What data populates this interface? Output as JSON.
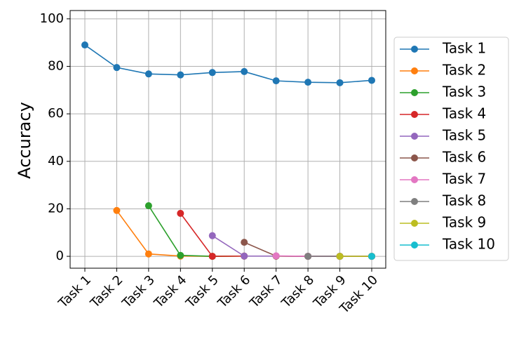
{
  "chart_data": {
    "type": "line",
    "ylabel": "Accuracy",
    "categories": [
      "Task 1",
      "Task 2",
      "Task 3",
      "Task 4",
      "Task 5",
      "Task 6",
      "Task 7",
      "Task 8",
      "Task 9",
      "Task 10"
    ],
    "series": [
      {
        "name": "Task 1",
        "color": "#1f77b4",
        "values": [
          89,
          79.5,
          76.8,
          76.4,
          77.4,
          77.8,
          73.9,
          73.3,
          73.1,
          74.1
        ]
      },
      {
        "name": "Task 2",
        "color": "#ff7f0e",
        "values": [
          null,
          19.3,
          1.0,
          0.1,
          0.0,
          0.1,
          0.1,
          0.0,
          0.0,
          0.0
        ]
      },
      {
        "name": "Task 3",
        "color": "#2ca02c",
        "values": [
          null,
          null,
          21.3,
          0.4,
          0.0,
          0.1,
          0.1,
          0.0,
          0.0,
          0.0
        ]
      },
      {
        "name": "Task 4",
        "color": "#d62728",
        "values": [
          null,
          null,
          null,
          18.1,
          0.0,
          0.1,
          0.1,
          0.0,
          0.0,
          0.0
        ]
      },
      {
        "name": "Task 5",
        "color": "#9467bd",
        "values": [
          null,
          null,
          null,
          null,
          8.7,
          0.1,
          0.1,
          0.0,
          0.0,
          0.0
        ]
      },
      {
        "name": "Task 6",
        "color": "#8c564b",
        "values": [
          null,
          null,
          null,
          null,
          null,
          5.9,
          0.1,
          0.0,
          0.0,
          0.0
        ]
      },
      {
        "name": "Task 7",
        "color": "#e377c2",
        "values": [
          null,
          null,
          null,
          null,
          null,
          null,
          0.2,
          0.0,
          0.0,
          0.0
        ]
      },
      {
        "name": "Task 8",
        "color": "#7f7f7f",
        "values": [
          null,
          null,
          null,
          null,
          null,
          null,
          null,
          0.0,
          0.0,
          0.0
        ]
      },
      {
        "name": "Task 9",
        "color": "#bcbd22",
        "values": [
          null,
          null,
          null,
          null,
          null,
          null,
          null,
          null,
          0.0,
          0.0
        ]
      },
      {
        "name": "Task 10",
        "color": "#17becf",
        "values": [
          null,
          null,
          null,
          null,
          null,
          null,
          null,
          null,
          null,
          0.0
        ]
      }
    ],
    "ylim": [
      -5,
      103.5
    ],
    "yticks": [
      0,
      20,
      40,
      60,
      80,
      100
    ],
    "grid": true,
    "legend": "outside right"
  }
}
